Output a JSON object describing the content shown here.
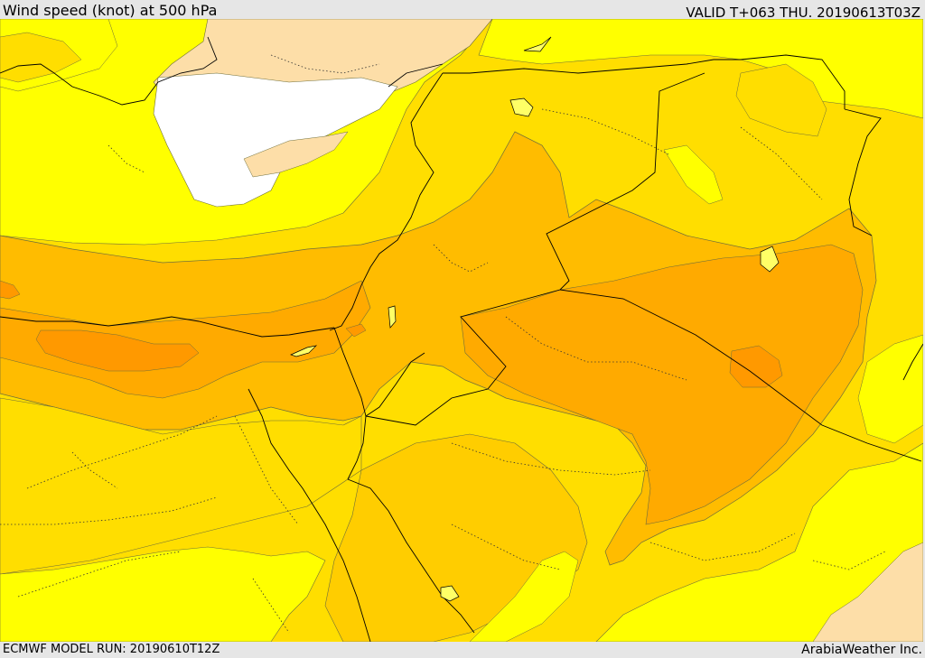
{
  "header": {
    "title": "Wind speed (knot) at 500 hPa",
    "valid_time": "VALID T+063 THU. 20190613T03Z"
  },
  "footer": {
    "model_run": "ECMWF MODEL RUN: 20190610T12Z",
    "credit": "ArabiaWeather Inc."
  },
  "map": {
    "variable": "wind speed at 500 hPa",
    "colors": {
      "light_peach": "#fddea8",
      "white": "#ffffff",
      "yellow_bright": "#ffff00",
      "yellow_gold": "#ffde00",
      "gold": "#ffcd00",
      "amber": "#ffbc00",
      "orange_light": "#ffaa00",
      "orange": "#ff9900"
    }
  }
}
